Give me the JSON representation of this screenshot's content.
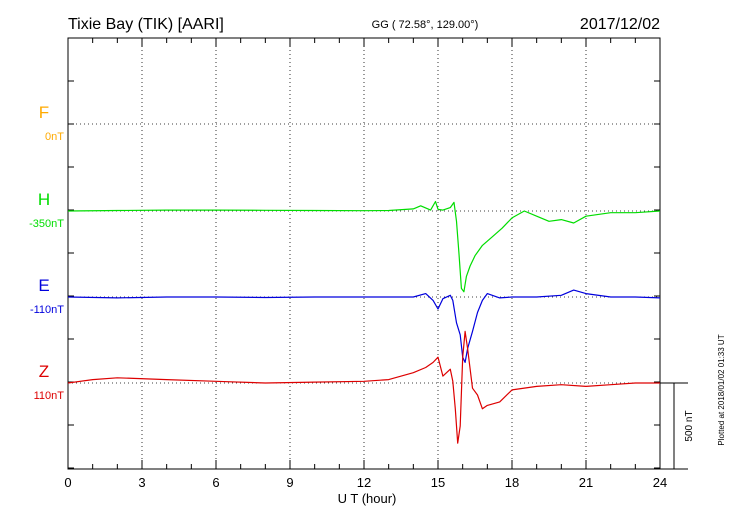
{
  "header": {
    "station": "Tixie Bay (TIK)  [AARI]",
    "coords": "GG ( 72.58°, 129.00°)",
    "date": "2017/12/02"
  },
  "footer": {
    "plotted": "Plotted at 2018/01/02 01:33 UT"
  },
  "chart_data": {
    "type": "line",
    "xlabel": "U T (hour)",
    "xlim": [
      0,
      24
    ],
    "x_ticks": [
      "0",
      "3",
      "6",
      "9",
      "12",
      "15",
      "18",
      "21",
      "24"
    ],
    "scale_bar": "500 nT",
    "grid": true,
    "series": [
      {
        "name": "F",
        "baseline": "0nT",
        "color": "#ffaa00",
        "x": [],
        "values": []
      },
      {
        "name": "H",
        "baseline": "-350nT",
        "color": "#00dd00",
        "x": [
          0,
          2,
          4,
          6,
          8,
          10,
          12,
          13,
          14,
          14.3,
          14.7,
          14.9,
          15.0,
          15.2,
          15.5,
          15.65,
          15.75,
          15.85,
          15.95,
          16.05,
          16.15,
          16.3,
          16.5,
          16.8,
          17.2,
          17.6,
          18,
          18.5,
          19,
          19.5,
          20,
          20.5,
          21,
          22,
          23,
          24
        ],
        "values": [
          0,
          3,
          5,
          5,
          4,
          3,
          2,
          3,
          12,
          30,
          5,
          55,
          10,
          5,
          20,
          50,
          -60,
          -250,
          -450,
          -470,
          -380,
          -320,
          -260,
          -200,
          -150,
          -100,
          -40,
          0,
          -30,
          -60,
          -50,
          -70,
          -30,
          -10,
          -10,
          0
        ]
      },
      {
        "name": "E",
        "baseline": "-110nT",
        "color": "#0000dd",
        "x": [
          0,
          2,
          4,
          6,
          8,
          10,
          12,
          14,
          14.5,
          14.8,
          15.0,
          15.2,
          15.5,
          15.6,
          15.75,
          15.9,
          16.0,
          16.1,
          16.2,
          16.4,
          16.6,
          16.8,
          17.0,
          17.5,
          18,
          19,
          20,
          20.5,
          21,
          22,
          23,
          24
        ],
        "values": [
          0,
          -5,
          0,
          0,
          -3,
          0,
          0,
          0,
          20,
          -20,
          -70,
          -10,
          10,
          -20,
          -150,
          -220,
          -350,
          -380,
          -300,
          -200,
          -90,
          -20,
          20,
          -5,
          0,
          0,
          10,
          40,
          20,
          0,
          0,
          -5
        ]
      },
      {
        "name": "Z",
        "baseline": "110nT",
        "color": "#dd0000",
        "x": [
          0,
          1,
          2,
          4,
          6,
          8,
          10,
          12,
          13,
          14,
          14.5,
          14.8,
          15.0,
          15.2,
          15.5,
          15.6,
          15.7,
          15.8,
          15.9,
          16.0,
          16.1,
          16.2,
          16.4,
          16.6,
          16.8,
          17.0,
          17.5,
          18,
          19,
          20,
          21,
          22,
          23,
          24
        ],
        "values": [
          0,
          20,
          30,
          20,
          10,
          0,
          5,
          10,
          20,
          60,
          90,
          120,
          150,
          40,
          80,
          10,
          -150,
          -350,
          -250,
          150,
          300,
          200,
          -30,
          -70,
          -150,
          -130,
          -110,
          -40,
          -20,
          -10,
          -20,
          -10,
          0,
          0
        ]
      }
    ]
  }
}
